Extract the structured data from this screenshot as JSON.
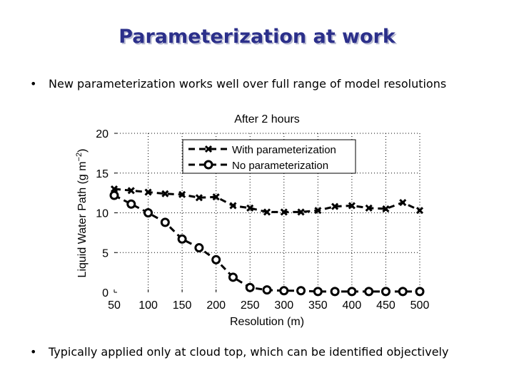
{
  "slide": {
    "title": "Parameterization at work",
    "bullets": [
      "New parameterization works well over full range of model resolutions",
      "Typically applied only at cloud top, which can be identified objectively"
    ]
  },
  "chart_data": {
    "type": "line",
    "title": "After 2 hours",
    "xlabel": "Resolution (m)",
    "ylabel": "Liquid Water Path (g m",
    "ylabel_sup": "−2",
    "ylabel_end": ")",
    "xlim": [
      50,
      500
    ],
    "ylim": [
      0,
      20
    ],
    "xticks": [
      50,
      100,
      150,
      200,
      250,
      300,
      350,
      400,
      450,
      500
    ],
    "yticks": [
      0,
      5,
      10,
      15,
      20
    ],
    "grid": true,
    "legend_position": "top-right",
    "series": [
      {
        "name": "With parameterization",
        "marker": "x",
        "x": [
          50,
          75,
          100,
          125,
          150,
          175,
          200,
          225,
          250,
          275,
          300,
          325,
          350,
          375,
          400,
          425,
          450,
          475,
          500
        ],
        "values": [
          13.0,
          12.8,
          12.6,
          12.4,
          12.3,
          11.9,
          12.0,
          10.9,
          10.6,
          10.1,
          10.1,
          10.1,
          10.3,
          10.8,
          10.9,
          10.6,
          10.5,
          11.3,
          10.3
        ]
      },
      {
        "name": "No parameterization",
        "marker": "o",
        "x": [
          50,
          75,
          100,
          125,
          150,
          175,
          200,
          225,
          250,
          275,
          300,
          325,
          350,
          375,
          400,
          425,
          450,
          475,
          500
        ],
        "values": [
          12.2,
          11.1,
          10.0,
          8.8,
          6.7,
          5.6,
          4.1,
          1.9,
          0.6,
          0.3,
          0.2,
          0.2,
          0.1,
          0.1,
          0.1,
          0.1,
          0.1,
          0.1,
          0.1
        ]
      }
    ]
  }
}
